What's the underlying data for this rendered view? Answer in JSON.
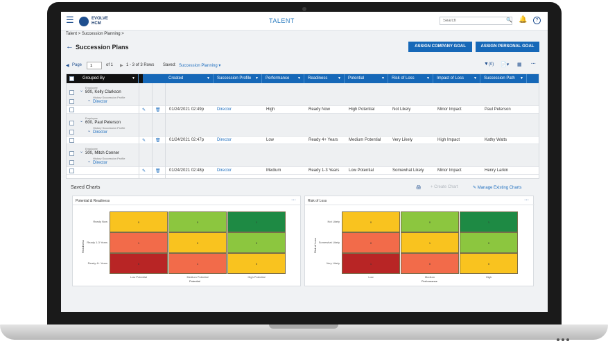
{
  "colors": {
    "primary": "#1668b8",
    "link": "#1f6fbf",
    "heat_dark_green": "#1e8a44",
    "heat_green": "#8cc63f",
    "heat_yellow": "#f9c31f",
    "heat_orange": "#f26b4a",
    "heat_red": "#b82525"
  },
  "header": {
    "logo_line1": "EVOLVE",
    "logo_line2": "HCM",
    "app_title": "TALENT",
    "search_placeholder": "Search",
    "icons": [
      "hamburger-icon",
      "search-icon",
      "bell-icon",
      "help-icon"
    ]
  },
  "breadcrumb": "Talent > Succession Planning >",
  "page_title": "Succession Plans",
  "buttons": {
    "company_goal": "ASSIGN COMPANY GOAL",
    "personal_goal": "ASSIGN PERSONAL GOAL"
  },
  "pager": {
    "page_label": "Page",
    "page_value": "1",
    "of_label": "of 1",
    "rows": "1 - 3 of 3 Rows",
    "saved_label": "Saved:",
    "saved_value": "Succession Planning",
    "filter_count": "(0)"
  },
  "grid": {
    "grouped_by": "Grouped By",
    "columns": [
      "Created",
      "Succession Profile",
      "Performance",
      "Readiness",
      "Potential",
      "Risk of Loss",
      "Impact of Loss",
      "Succession Path"
    ],
    "employee_label": "Employee",
    "profile_label": "History Succession Profile",
    "groups": [
      {
        "employee": "800, Kelly Clarkson",
        "profile": "Director",
        "row": [
          "01/24/2021 02:49p",
          "Director",
          "High",
          "Ready Now",
          "High Potential",
          "Not Likely",
          "Minor Impact",
          "Paul Peterson"
        ]
      },
      {
        "employee": "600, Paul Peterson",
        "profile": "Director",
        "row": [
          "01/24/2021 02:47p",
          "Director",
          "Low",
          "Ready 4+ Years",
          "Medium Potential",
          "Very Likely",
          "High Impact",
          "Kathy Watts"
        ]
      },
      {
        "employee": "300, Mitch Conner",
        "profile": "Director",
        "row": [
          "01/24/2021 02:48p",
          "Director",
          "Medium",
          "Ready 1-3 Years",
          "Low Potential",
          "Somewhat Likely",
          "Minor Impact",
          "Henry Larkin"
        ]
      }
    ]
  },
  "saved_charts": {
    "title": "Saved Charts",
    "create_chart": "Create Chart",
    "manage": "Manage Existing Charts"
  },
  "chart_data": [
    {
      "type": "heatmap",
      "title": "Potential & Readiness",
      "xlabel": "Potential",
      "ylabel": "Readiness",
      "x": [
        "Low Potential",
        "Medium Potential",
        "High Potential"
      ],
      "y": [
        "Ready Now",
        "Ready 1-3 Years",
        "Ready 4+ Years"
      ],
      "values": [
        [
          0,
          0,
          1
        ],
        [
          1,
          0,
          0
        ],
        [
          0,
          1,
          0
        ]
      ],
      "cell_colors": [
        [
          "heat_yellow",
          "heat_green",
          "heat_dark_green"
        ],
        [
          "heat_orange",
          "heat_yellow",
          "heat_green"
        ],
        [
          "heat_red",
          "heat_orange",
          "heat_yellow"
        ]
      ]
    },
    {
      "type": "heatmap",
      "title": "Risk of Loss",
      "xlabel": "Performance",
      "ylabel": "Risk of Loss",
      "x": [
        "Low",
        "Medium",
        "High"
      ],
      "y": [
        "Not Likely",
        "Somewhat Likely",
        "Very Likely"
      ],
      "values": [
        [
          0,
          0,
          1
        ],
        [
          0,
          1,
          0
        ],
        [
          1,
          0,
          0
        ]
      ],
      "cell_colors": [
        [
          "heat_yellow",
          "heat_green",
          "heat_dark_green"
        ],
        [
          "heat_orange",
          "heat_yellow",
          "heat_green"
        ],
        [
          "heat_red",
          "heat_orange",
          "heat_yellow"
        ]
      ]
    }
  ]
}
